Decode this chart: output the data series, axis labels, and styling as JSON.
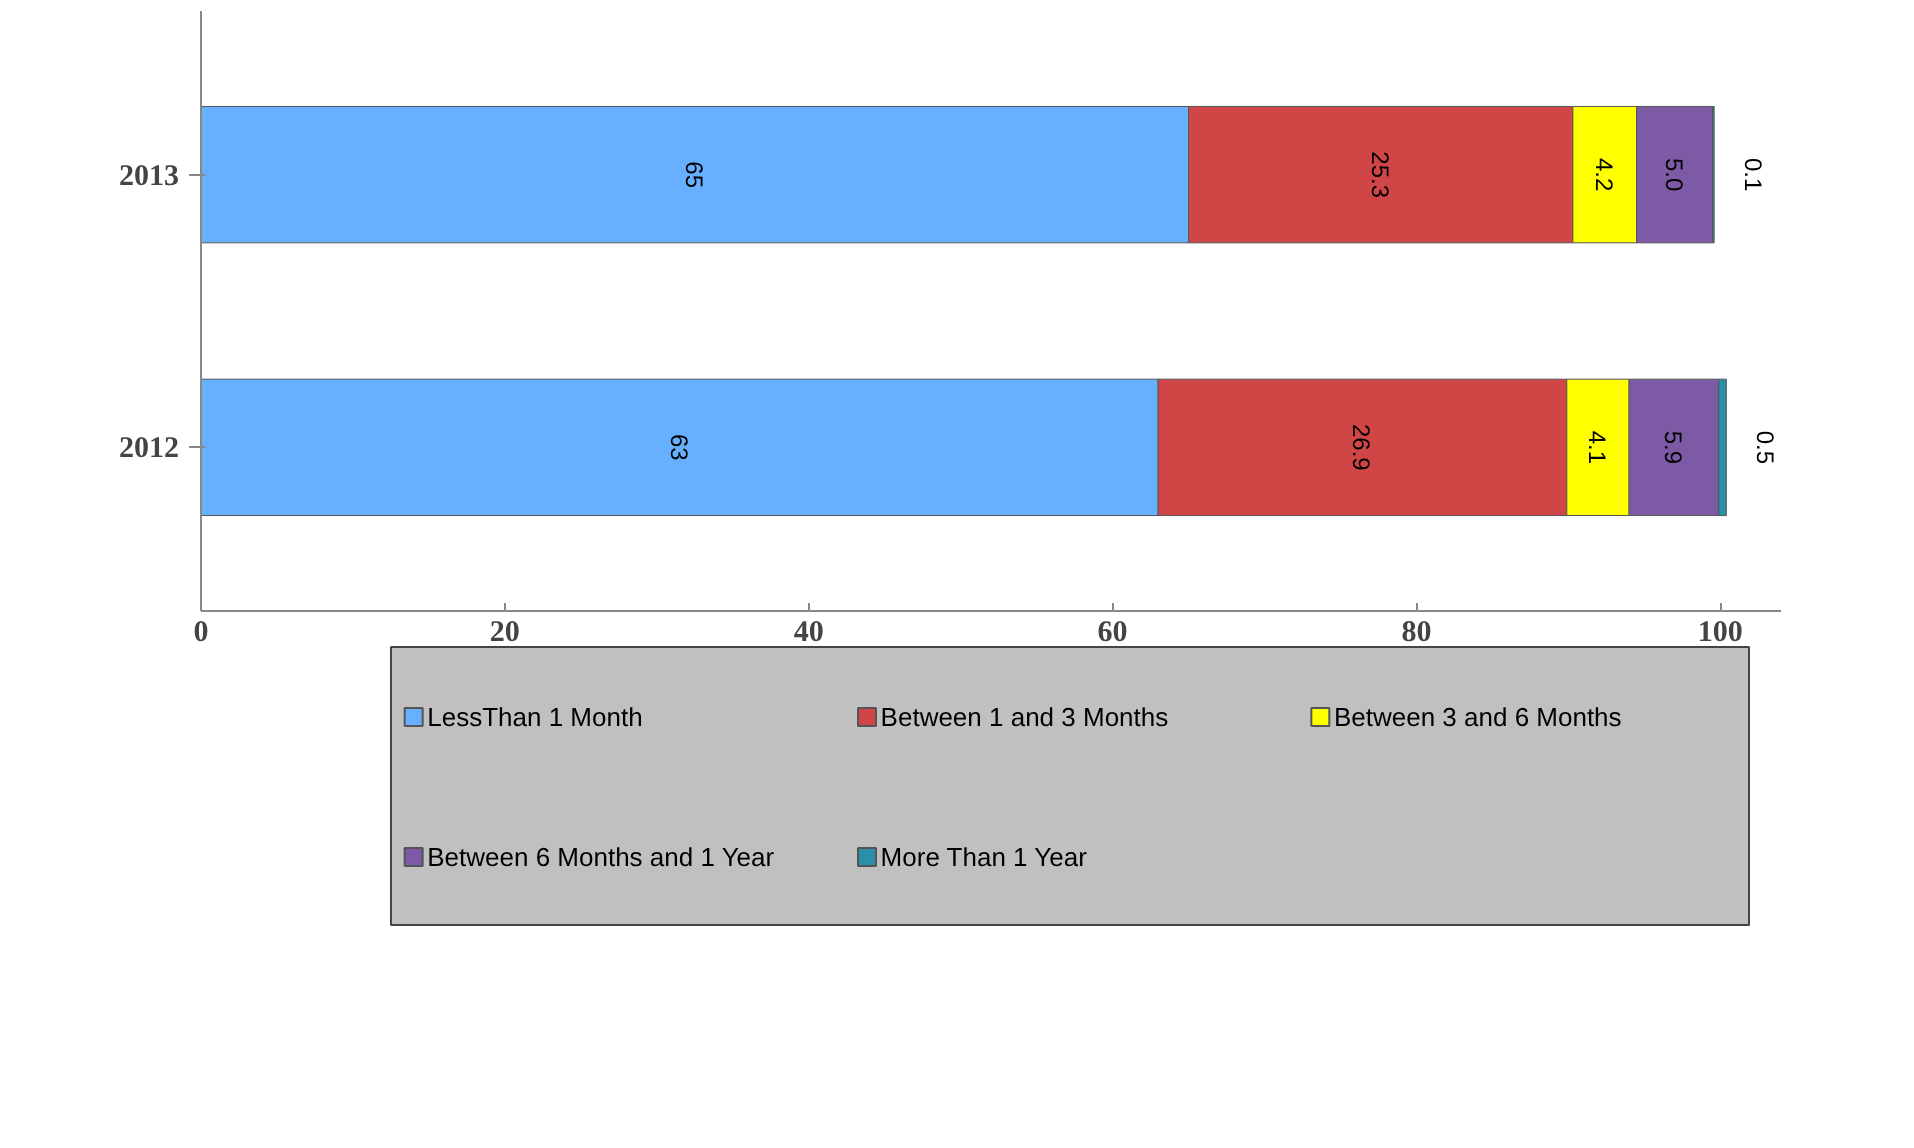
{
  "chart_data": {
    "type": "bar",
    "orientation": "horizontal",
    "stacked": true,
    "categories": [
      "2013",
      "2012"
    ],
    "series": [
      {
        "name": "LessThan 1 Month",
        "color": "#66b0ff",
        "values": [
          65,
          63
        ],
        "value_labels": [
          "65",
          "63"
        ]
      },
      {
        "name": "Between 1 and 3 Months",
        "color": "#d04545",
        "values": [
          25.3,
          26.9
        ],
        "value_labels": [
          "25.3",
          "26.9"
        ]
      },
      {
        "name": "Between 3 and 6 Months",
        "color": "#ffff00",
        "values": [
          4.2,
          4.1
        ],
        "value_labels": [
          "4.2",
          "4.1"
        ]
      },
      {
        "name": "Between 6 Months and 1 Year",
        "color": "#7c5aa6",
        "values": [
          5.0,
          5.9
        ],
        "value_labels": [
          "5.0",
          "5.9"
        ]
      },
      {
        "name": "More Than 1 Year",
        "color": "#2a8fa8",
        "values": [
          0.1,
          0.5
        ],
        "value_labels": [
          "0.1",
          "0.5"
        ]
      }
    ],
    "xlim": [
      0,
      104
    ],
    "xticks": [
      0,
      20,
      40,
      60,
      80,
      100
    ],
    "grid": false,
    "legend": "bottom"
  }
}
